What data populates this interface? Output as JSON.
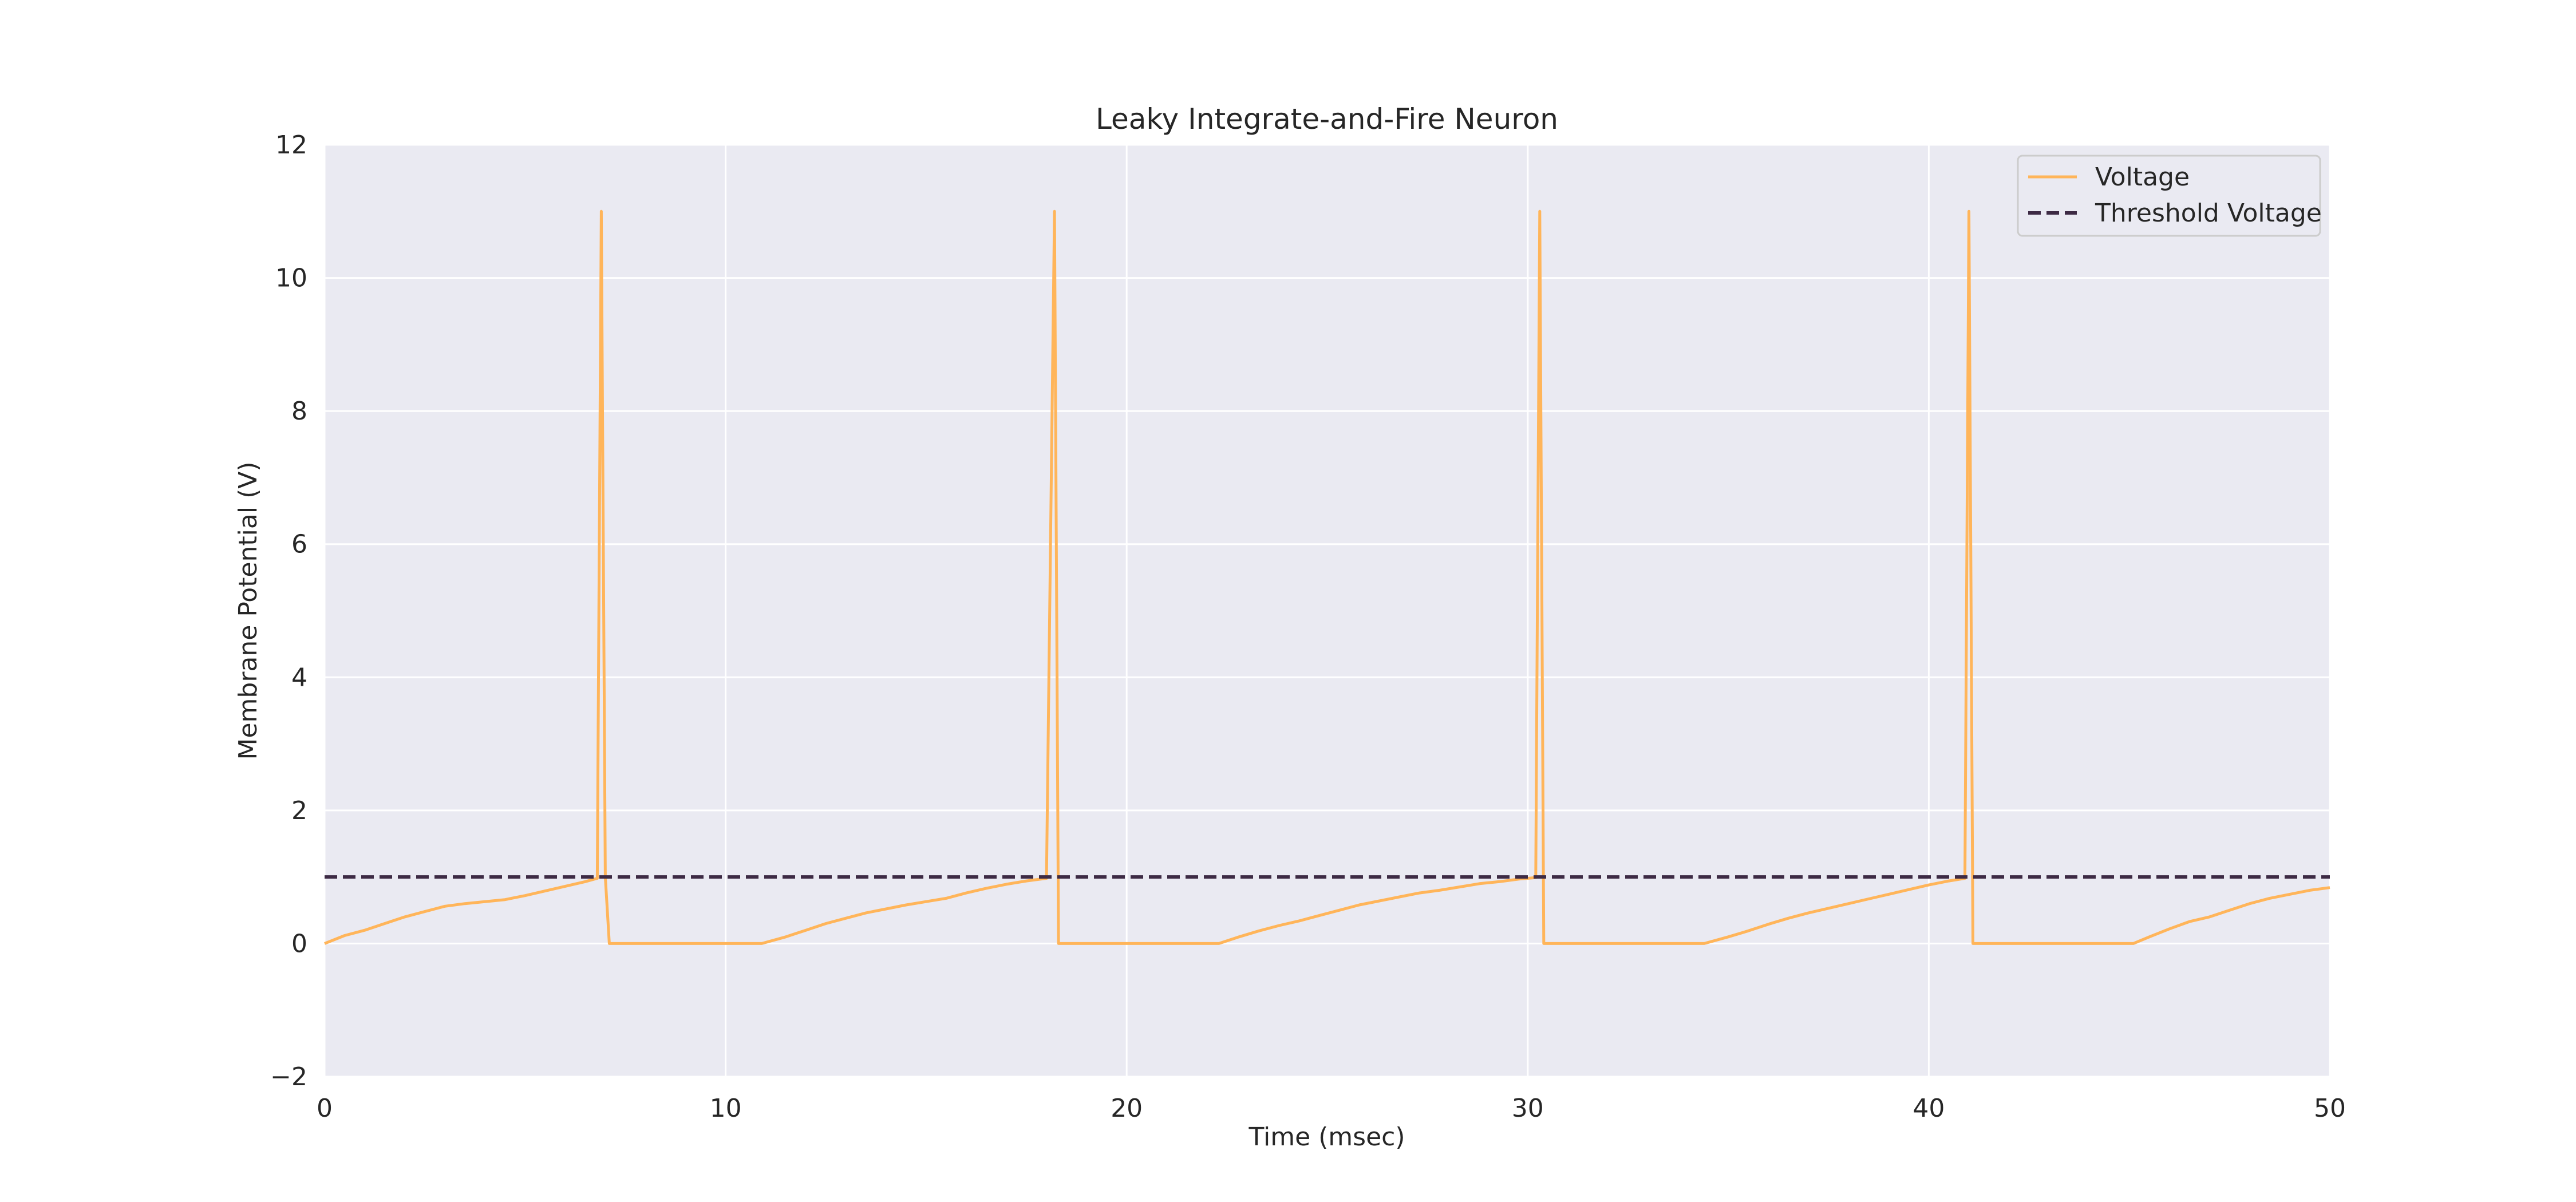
{
  "chart_data": {
    "type": "line",
    "title": "Leaky Integrate-and-Fire Neuron",
    "xlabel": "Time (msec)",
    "ylabel": "Membrane Potential (V)",
    "xlim": [
      0,
      50
    ],
    "ylim": [
      -2,
      12
    ],
    "xticks": [
      0,
      10,
      20,
      30,
      40,
      50
    ],
    "xtick_labels": [
      "0",
      "10",
      "20",
      "30",
      "40",
      "50"
    ],
    "yticks": [
      -2,
      0,
      2,
      4,
      6,
      8,
      10,
      12
    ],
    "ytick_labels": [
      "−2",
      "0",
      "2",
      "4",
      "6",
      "8",
      "10",
      "12"
    ],
    "grid": true,
    "legend_position": "top-right",
    "background_color": "#eaeaf2",
    "series": [
      {
        "name": "Voltage",
        "style": "solid",
        "color": "#ffb55a",
        "x": [
          0,
          0.5,
          1,
          1.5,
          2,
          2.5,
          3,
          3.5,
          4,
          4.5,
          5,
          5.5,
          6,
          6.5,
          6.8,
          6.9,
          7.0,
          7.1,
          8,
          9,
          10,
          10.9,
          11.5,
          12,
          12.5,
          13,
          13.5,
          14,
          14.5,
          15,
          15.5,
          16,
          16.5,
          17,
          17.5,
          18.0,
          18.2,
          18.3,
          18.4,
          19,
          20,
          21,
          22.3,
          22.8,
          23.3,
          23.8,
          24.3,
          24.8,
          25.3,
          25.8,
          26.3,
          26.8,
          27.3,
          27.8,
          28.3,
          28.8,
          29.3,
          29.8,
          30.2,
          30.3,
          30.4,
          30.5,
          31,
          32,
          33,
          34.4,
          35,
          35.5,
          36,
          36.5,
          37,
          37.5,
          38,
          38.5,
          39,
          39.5,
          40,
          40.5,
          40.9,
          41.0,
          41.1,
          41.2,
          42,
          43,
          44,
          45.1,
          45.5,
          46,
          46.5,
          47,
          47.5,
          48,
          48.5,
          49,
          49.5,
          50
        ],
        "y": [
          0,
          0.12,
          0.2,
          0.3,
          0.4,
          0.48,
          0.56,
          0.6,
          0.63,
          0.66,
          0.72,
          0.79,
          0.86,
          0.93,
          0.98,
          11,
          1.0,
          0,
          0,
          0,
          0,
          0,
          0.1,
          0.2,
          0.3,
          0.38,
          0.46,
          0.52,
          0.58,
          0.63,
          0.68,
          0.76,
          0.83,
          0.89,
          0.94,
          0.98,
          11,
          0,
          0,
          0,
          0,
          0,
          0,
          0.1,
          0.19,
          0.27,
          0.34,
          0.42,
          0.5,
          0.58,
          0.64,
          0.7,
          0.76,
          0.8,
          0.85,
          0.9,
          0.93,
          0.97,
          0.99,
          11,
          0,
          0,
          0,
          0,
          0,
          0,
          0.1,
          0.19,
          0.29,
          0.38,
          0.46,
          0.53,
          0.6,
          0.67,
          0.74,
          0.81,
          0.88,
          0.94,
          0.98,
          11,
          0,
          0,
          0,
          0,
          0,
          0,
          0.1,
          0.22,
          0.33,
          0.4,
          0.5,
          0.6,
          0.68,
          0.74,
          0.8,
          0.84
        ]
      },
      {
        "name": "Threshold Voltage",
        "style": "dashed",
        "color": "#3d2a44",
        "x": [
          0,
          50
        ],
        "y": [
          1,
          1
        ]
      }
    ]
  }
}
